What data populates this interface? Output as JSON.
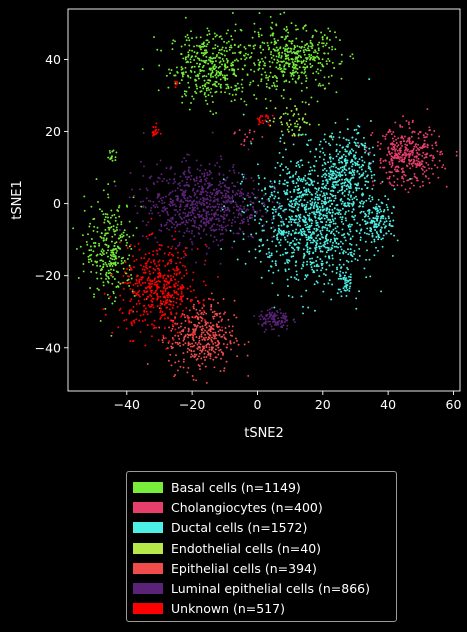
{
  "chart_data": {
    "type": "scatter",
    "xlabel": "tSNE2",
    "ylabel": "tSNE1",
    "xlim": [
      -58,
      62
    ],
    "ylim": [
      -52,
      54
    ],
    "xticks": [
      -40,
      -20,
      0,
      20,
      40,
      60
    ],
    "yticks": [
      -40,
      -20,
      0,
      20,
      40
    ],
    "xtick_labels": [
      "−40",
      "−20",
      "0",
      "20",
      "40",
      "60"
    ],
    "ytick_labels": [
      "−40",
      "−20",
      "0",
      "20",
      "40"
    ],
    "grid": false,
    "legend_position": "below",
    "series": [
      {
        "name": "Basal cells (n=1149)",
        "color": "#76ee3a",
        "clusters": [
          {
            "cx": -14,
            "cy": 38,
            "sx": 6.5,
            "sy": 5,
            "n": 420
          },
          {
            "cx": 11,
            "cy": 40,
            "sx": 7,
            "sy": 4.5,
            "n": 420
          },
          {
            "cx": -45,
            "cy": -13,
            "sx": 3.8,
            "sy": 7,
            "n": 280
          },
          {
            "cx": -44.5,
            "cy": 13.5,
            "sx": 0.8,
            "sy": 0.9,
            "n": 15
          },
          {
            "cx": 12,
            "cy": 22,
            "sx": 2.5,
            "sy": 1.5,
            "n": 14
          }
        ]
      },
      {
        "name": "Cholangiocytes (n=400)",
        "color": "#e83e6c",
        "clusters": [
          {
            "cx": 46,
            "cy": 13,
            "sx": 5,
            "sy": 4,
            "n": 385
          },
          {
            "cx": -3,
            "cy": 19,
            "sx": 2,
            "sy": 1.5,
            "n": 15
          }
        ]
      },
      {
        "name": "Ductal cells (n=1572)",
        "color": "#4df0e5",
        "clusters": [
          {
            "cx": 17,
            "cy": -4,
            "sx": 9,
            "sy": 9,
            "n": 1150
          },
          {
            "cx": 28,
            "cy": 11,
            "sx": 3.5,
            "sy": 5,
            "n": 250
          },
          {
            "cx": 37,
            "cy": -5,
            "sx": 2.5,
            "sy": 3,
            "n": 130
          },
          {
            "cx": 27,
            "cy": -22,
            "sx": 1,
            "sy": 2,
            "n": 42
          }
        ]
      },
      {
        "name": "Endothelial cells (n=40)",
        "color": "#b6e84a",
        "clusters": [
          {
            "cx": 10,
            "cy": 22,
            "sx": 4,
            "sy": 2.5,
            "n": 40
          }
        ]
      },
      {
        "name": "Epithelial cells (n=394)",
        "color": "#f04c4c",
        "clusters": [
          {
            "cx": -17,
            "cy": -37,
            "sx": 5,
            "sy": 5,
            "n": 394
          }
        ]
      },
      {
        "name": "Luminal epithelial cells (n=866)",
        "color": "#5b2378",
        "clusters": [
          {
            "cx": -17,
            "cy": 0,
            "sx": 9,
            "sy": 5.5,
            "n": 760
          },
          {
            "cx": 5,
            "cy": -32,
            "sx": 2.5,
            "sy": 1.5,
            "n": 106
          }
        ]
      },
      {
        "name": "Unknown (n=517)",
        "color": "#ff0000",
        "clusters": [
          {
            "cx": -30,
            "cy": -24,
            "sx": 6,
            "sy": 6,
            "n": 470
          },
          {
            "cx": -31.5,
            "cy": 20,
            "sx": 0.7,
            "sy": 0.8,
            "n": 20
          },
          {
            "cx": -25,
            "cy": 33.5,
            "sx": 0.4,
            "sy": 0.5,
            "n": 6
          },
          {
            "cx": 2,
            "cy": 23,
            "sx": 1.5,
            "sy": 1,
            "n": 21
          }
        ]
      }
    ]
  }
}
